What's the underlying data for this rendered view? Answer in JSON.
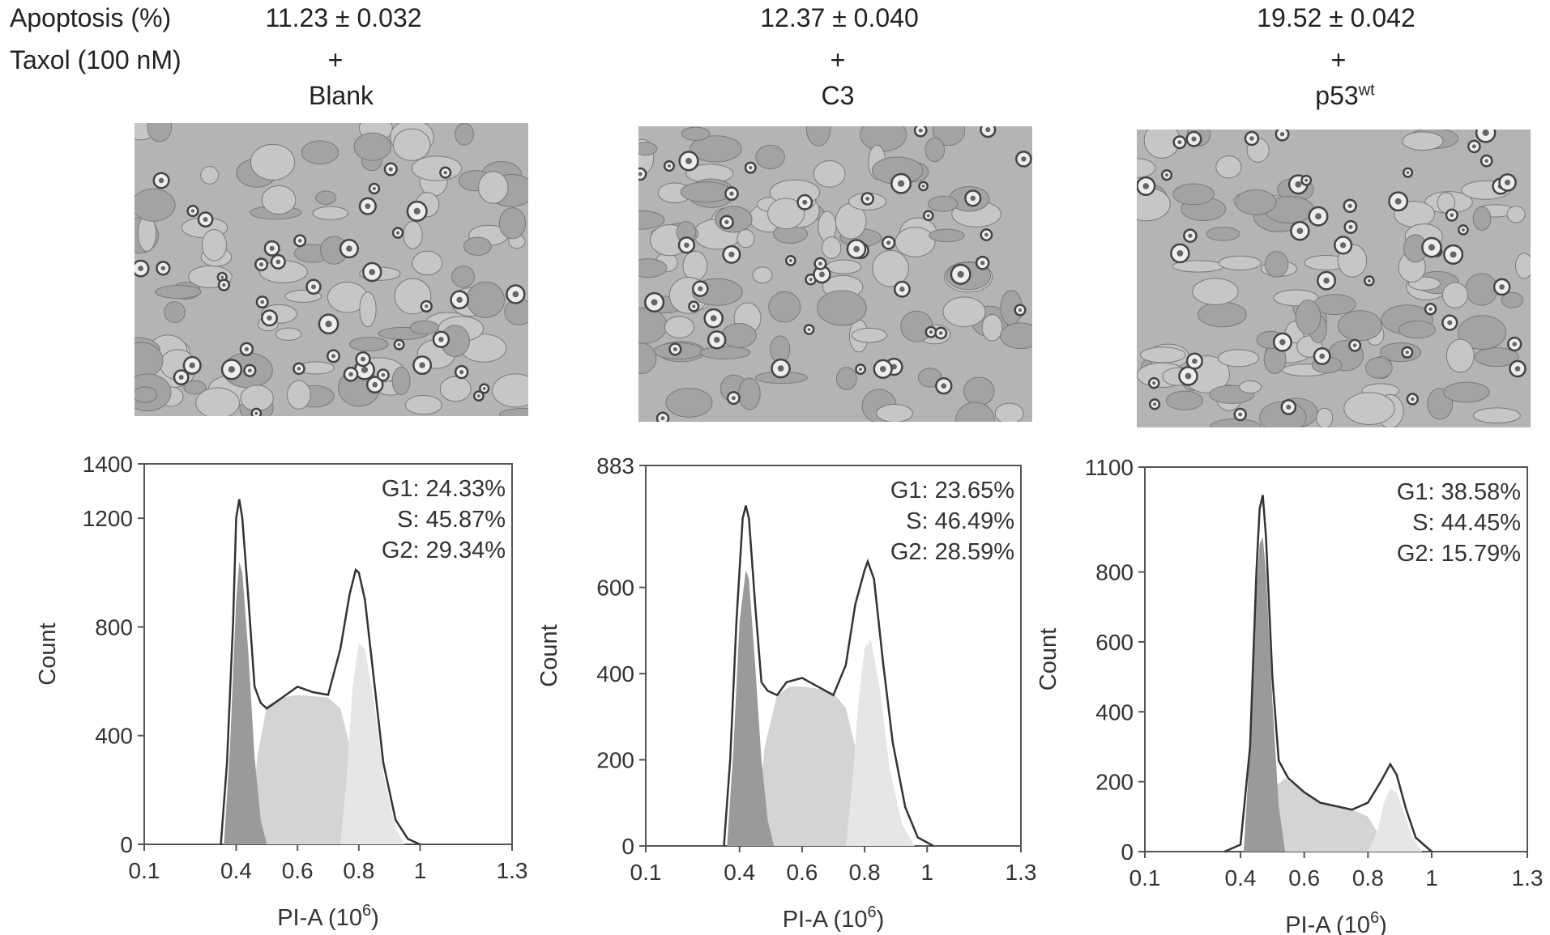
{
  "header": {
    "apoptosis_label": "Apoptosis (%)",
    "taxol_label": "Taxol (100 nM)",
    "columns": [
      {
        "apoptosis": "11.23 ± 0.032",
        "taxol": "+",
        "group": "Blank",
        "group_sup": ""
      },
      {
        "apoptosis": "12.37 ± 0.040",
        "taxol": "+",
        "group": "C3",
        "group_sup": ""
      },
      {
        "apoptosis": "19.52 ± 0.042",
        "taxol": "+",
        "group": "p53",
        "group_sup": "wt"
      }
    ]
  },
  "chart_data": [
    {
      "type": "area",
      "xlabel": "PI-A (10",
      "xlabel_sup": "6",
      "xlabel_end": ")",
      "ylabel": "Count",
      "xlim": [
        0.1,
        1.3
      ],
      "ylim": [
        0,
        1400
      ],
      "xticks": [
        0.1,
        0.4,
        0.6,
        0.8,
        1,
        1.3
      ],
      "xtick_labels": [
        "0.1",
        "0.4",
        "0.6",
        "0.8",
        "1",
        "1.3"
      ],
      "yticks": [
        0,
        400,
        800,
        1200,
        1400
      ],
      "ytick_labels": [
        "0",
        "400",
        "800",
        "1200",
        "1400"
      ],
      "annotations": [
        "G1: 24.33%",
        "S: 45.87%",
        "G2: 29.34%"
      ],
      "histogram": {
        "x": [
          0.35,
          0.37,
          0.39,
          0.4,
          0.41,
          0.42,
          0.44,
          0.46,
          0.48,
          0.5,
          0.55,
          0.6,
          0.65,
          0.7,
          0.74,
          0.77,
          0.79,
          0.8,
          0.82,
          0.85,
          0.88,
          0.92,
          0.96,
          1.0
        ],
        "y": [
          0,
          300,
          820,
          1200,
          1270,
          1200,
          900,
          580,
          520,
          500,
          540,
          580,
          560,
          550,
          720,
          920,
          1010,
          1000,
          900,
          600,
          300,
          90,
          20,
          0
        ]
      },
      "g1": {
        "x": [
          0.36,
          0.38,
          0.4,
          0.41,
          0.42,
          0.44,
          0.46,
          0.48,
          0.5
        ],
        "y": [
          0,
          360,
          900,
          1040,
          1000,
          700,
          320,
          90,
          0
        ]
      },
      "g2": {
        "x": [
          0.74,
          0.76,
          0.78,
          0.8,
          0.82,
          0.85,
          0.88,
          0.92,
          0.95
        ],
        "y": [
          0,
          240,
          580,
          740,
          720,
          520,
          260,
          60,
          0
        ]
      },
      "s": {
        "x": [
          0.44,
          0.47,
          0.5,
          0.55,
          0.6,
          0.65,
          0.7,
          0.74,
          0.78,
          0.82,
          0.86
        ],
        "y": [
          0,
          330,
          510,
          540,
          550,
          545,
          540,
          500,
          320,
          90,
          0
        ]
      }
    },
    {
      "type": "area",
      "xlabel": "PI-A (10",
      "xlabel_sup": "6",
      "xlabel_end": ")",
      "ylabel": "Count",
      "xlim": [
        0.1,
        1.3
      ],
      "ylim": [
        0,
        883
      ],
      "xticks": [
        0.1,
        0.4,
        0.6,
        0.8,
        1,
        1.3
      ],
      "xtick_labels": [
        "0.1",
        "0.4",
        "0.6",
        "0.8",
        "1",
        "1.3"
      ],
      "yticks": [
        0,
        200,
        400,
        600,
        883
      ],
      "ytick_labels": [
        "0",
        "200",
        "400",
        "600",
        "883"
      ],
      "annotations": [
        "G1: 23.65%",
        "S: 46.49%",
        "G2: 28.59%"
      ],
      "histogram": {
        "x": [
          0.35,
          0.37,
          0.39,
          0.41,
          0.42,
          0.43,
          0.45,
          0.47,
          0.49,
          0.52,
          0.55,
          0.6,
          0.65,
          0.7,
          0.74,
          0.77,
          0.8,
          0.81,
          0.83,
          0.86,
          0.89,
          0.93,
          0.97,
          1.02
        ],
        "y": [
          0,
          200,
          520,
          760,
          790,
          760,
          560,
          380,
          360,
          350,
          380,
          390,
          370,
          350,
          420,
          560,
          640,
          660,
          620,
          420,
          240,
          90,
          20,
          0
        ]
      },
      "g1": {
        "x": [
          0.36,
          0.38,
          0.4,
          0.42,
          0.43,
          0.45,
          0.47,
          0.49,
          0.51
        ],
        "y": [
          0,
          220,
          520,
          640,
          620,
          420,
          200,
          60,
          0
        ]
      },
      "g2": {
        "x": [
          0.74,
          0.76,
          0.78,
          0.8,
          0.82,
          0.85,
          0.88,
          0.92,
          0.96
        ],
        "y": [
          0,
          140,
          330,
          460,
          480,
          360,
          180,
          50,
          0
        ]
      },
      "s": {
        "x": [
          0.45,
          0.48,
          0.52,
          0.56,
          0.6,
          0.65,
          0.7,
          0.74,
          0.78,
          0.82,
          0.86
        ],
        "y": [
          0,
          230,
          350,
          370,
          370,
          365,
          355,
          320,
          200,
          60,
          0
        ]
      }
    },
    {
      "type": "area",
      "xlabel": "PI-A (10",
      "xlabel_sup": "6",
      "xlabel_end": ")",
      "ylabel": "Count",
      "xlim": [
        0.1,
        1.3
      ],
      "ylim": [
        0,
        1100
      ],
      "xticks": [
        0.1,
        0.4,
        0.6,
        0.8,
        1,
        1.3
      ],
      "xtick_labels": [
        "0.1",
        "0.4",
        "0.6",
        "0.8",
        "1",
        "1.3"
      ],
      "yticks": [
        0,
        200,
        400,
        600,
        800,
        1100
      ],
      "ytick_labels": [
        "0",
        "200",
        "400",
        "600",
        "800",
        "1100"
      ],
      "annotations": [
        "G1: 38.58%",
        "S: 44.45%",
        "G2: 15.79%"
      ],
      "histogram": {
        "x": [
          0.35,
          0.4,
          0.43,
          0.45,
          0.46,
          0.47,
          0.48,
          0.5,
          0.52,
          0.55,
          0.6,
          0.65,
          0.7,
          0.75,
          0.8,
          0.84,
          0.87,
          0.89,
          0.92,
          0.95,
          1.0
        ],
        "y": [
          0,
          20,
          300,
          800,
          980,
          1020,
          900,
          500,
          260,
          210,
          170,
          140,
          130,
          120,
          140,
          200,
          250,
          220,
          120,
          40,
          0
        ]
      },
      "g1": {
        "x": [
          0.41,
          0.43,
          0.45,
          0.46,
          0.47,
          0.48,
          0.5,
          0.52,
          0.54
        ],
        "y": [
          0,
          300,
          740,
          880,
          900,
          800,
          430,
          130,
          0
        ]
      },
      "g2": {
        "x": [
          0.8,
          0.83,
          0.85,
          0.87,
          0.89,
          0.91,
          0.94,
          0.97
        ],
        "y": [
          0,
          60,
          140,
          180,
          170,
          120,
          40,
          0
        ]
      },
      "s": {
        "x": [
          0.47,
          0.5,
          0.54,
          0.6,
          0.65,
          0.7,
          0.75,
          0.8,
          0.84,
          0.88
        ],
        "y": [
          0,
          180,
          210,
          170,
          140,
          130,
          120,
          100,
          40,
          0
        ]
      }
    }
  ]
}
